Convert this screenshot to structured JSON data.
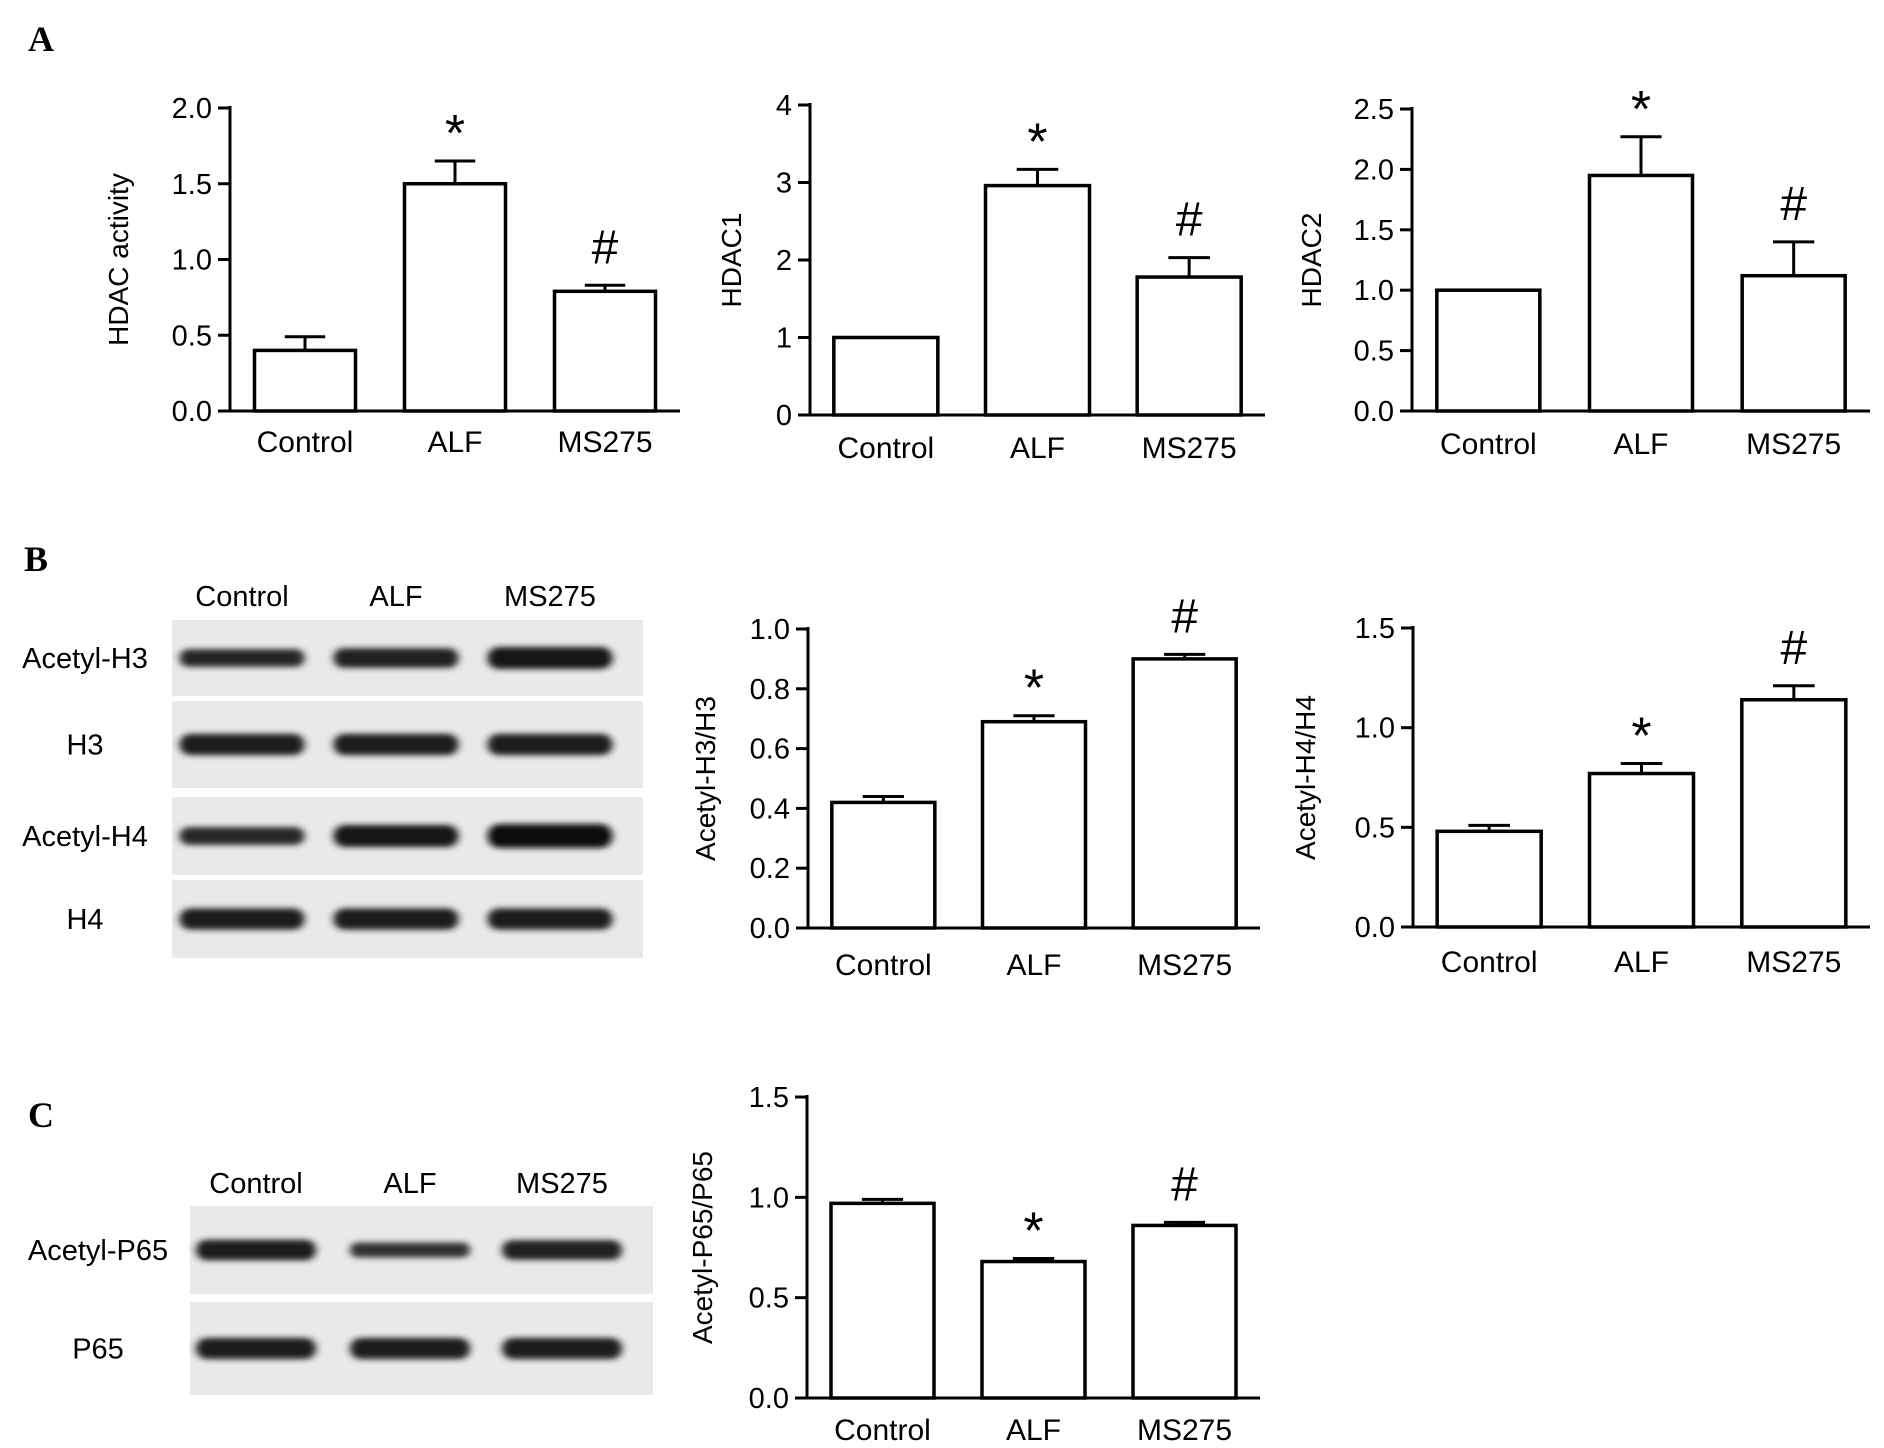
{
  "panels": {
    "A": "A",
    "B": "B",
    "C": "C"
  },
  "blots": {
    "B": {
      "lanes": [
        "Control",
        "ALF",
        "MS275"
      ],
      "rows": [
        "Acetyl-H3",
        "H3",
        "Acetyl-H4",
        "H4"
      ],
      "band_strength": [
        [
          0.55,
          0.7,
          0.85
        ],
        [
          0.8,
          0.8,
          0.8
        ],
        [
          0.55,
          0.85,
          1.0
        ],
        [
          0.8,
          0.8,
          0.8
        ]
      ]
    },
    "C": {
      "lanes": [
        "Control",
        "ALF",
        "MS275"
      ],
      "rows": [
        "Acetyl-P65",
        "P65"
      ],
      "band_strength": [
        [
          0.75,
          0.35,
          0.7
        ],
        [
          0.8,
          0.8,
          0.8
        ]
      ]
    }
  },
  "chart_data": [
    {
      "type": "bar",
      "panel": "A",
      "categories": [
        "Control",
        "ALF",
        "MS275"
      ],
      "values": [
        0.4,
        1.5,
        0.79
      ],
      "errors": [
        0.09,
        0.15,
        0.04
      ],
      "annotations": [
        "",
        "*",
        "#"
      ],
      "ylabel": "HDAC activity",
      "ylim": [
        0,
        2.0
      ],
      "yticks": [
        "0.0",
        "0.5",
        "1.0",
        "1.5",
        "2.0"
      ]
    },
    {
      "type": "bar",
      "panel": "A",
      "categories": [
        "Control",
        "ALF",
        "MS275"
      ],
      "values": [
        1.0,
        2.96,
        1.78
      ],
      "errors": [
        0.0,
        0.21,
        0.25
      ],
      "annotations": [
        "",
        "*",
        "#"
      ],
      "ylabel": "HDAC1",
      "ylim": [
        0,
        4
      ],
      "yticks": [
        "0",
        "1",
        "2",
        "3",
        "4"
      ]
    },
    {
      "type": "bar",
      "panel": "A",
      "categories": [
        "Control",
        "ALF",
        "MS275"
      ],
      "values": [
        1.0,
        1.95,
        1.12
      ],
      "errors": [
        0.0,
        0.32,
        0.28
      ],
      "annotations": [
        "",
        "*",
        "#"
      ],
      "ylabel": "HDAC2",
      "ylim": [
        0,
        2.5
      ],
      "yticks": [
        "0.0",
        "0.5",
        "1.0",
        "1.5",
        "2.0",
        "2.5"
      ]
    },
    {
      "type": "bar",
      "panel": "B",
      "categories": [
        "Control",
        "ALF",
        "MS275"
      ],
      "values": [
        0.42,
        0.69,
        0.9
      ],
      "errors": [
        0.02,
        0.02,
        0.015
      ],
      "annotations": [
        "",
        "*",
        "#"
      ],
      "ylabel": "Acetyl-H3/H3",
      "ylim": [
        0,
        1.0
      ],
      "yticks": [
        "0.0",
        "0.2",
        "0.4",
        "0.6",
        "0.8",
        "1.0"
      ]
    },
    {
      "type": "bar",
      "panel": "B",
      "categories": [
        "Control",
        "ALF",
        "MS275"
      ],
      "values": [
        0.48,
        0.77,
        1.14
      ],
      "errors": [
        0.03,
        0.05,
        0.07
      ],
      "annotations": [
        "",
        "*",
        "#"
      ],
      "ylabel": "Acetyl-H4/H4",
      "ylim": [
        0,
        1.5
      ],
      "yticks": [
        "0.0",
        "0.5",
        "1.0",
        "1.5"
      ]
    },
    {
      "type": "bar",
      "panel": "C",
      "categories": [
        "Control",
        "ALF",
        "MS275"
      ],
      "values": [
        0.97,
        0.68,
        0.86
      ],
      "errors": [
        0.02,
        0.015,
        0.015
      ],
      "annotations": [
        "",
        "*",
        "#"
      ],
      "ylabel": "Acetyl-P65/P65",
      "ylim": [
        0,
        1.5
      ],
      "yticks": [
        "0.0",
        "0.5",
        "1.0",
        "1.5"
      ]
    }
  ]
}
